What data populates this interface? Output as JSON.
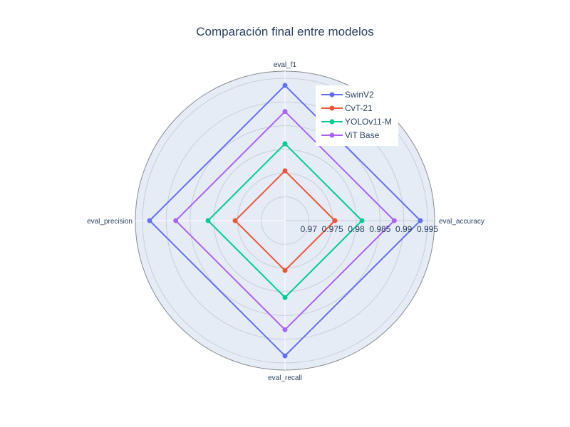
{
  "chart_data": {
    "type": "radar",
    "title": "Comparación final entre modelos",
    "axes": [
      "eval_accuracy",
      "eval_f1",
      "eval_precision",
      "eval_recall"
    ],
    "radial_range": [
      0.965,
      0.9965
    ],
    "radial_ticks": [
      0.97,
      0.975,
      0.98,
      0.985,
      0.99,
      0.995
    ],
    "radial_tick_labels": [
      "0.97",
      "0.975",
      "0.98",
      "0.985",
      "0.99",
      "0.995"
    ],
    "series": [
      {
        "name": "SwinV2",
        "color": "#636efa",
        "values": [
          0.9935,
          0.9935,
          0.9935,
          0.9935
        ]
      },
      {
        "name": "CvT-21",
        "color": "#ef553b",
        "values": [
          0.9755,
          0.9755,
          0.9755,
          0.9755
        ]
      },
      {
        "name": "YOLOv11-M",
        "color": "#00cc96",
        "values": [
          0.9812,
          0.9812,
          0.9812,
          0.9812
        ]
      },
      {
        "name": "ViT Base",
        "color": "#ab63fa",
        "values": [
          0.988,
          0.988,
          0.988,
          0.988
        ]
      }
    ],
    "legend_position": "top-right",
    "grid": true,
    "polar_bgcolor": "#e5ecf6"
  }
}
